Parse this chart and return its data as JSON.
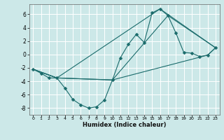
{
  "xlabel": "Humidex (Indice chaleur)",
  "background_color": "#cce8e8",
  "grid_color": "#ffffff",
  "line_color": "#1a6b6b",
  "xlim": [
    -0.5,
    23.5
  ],
  "ylim": [
    -9,
    7.5
  ],
  "xticks": [
    0,
    1,
    2,
    3,
    4,
    5,
    6,
    7,
    8,
    9,
    10,
    11,
    12,
    13,
    14,
    15,
    16,
    17,
    18,
    19,
    20,
    21,
    22,
    23
  ],
  "yticks": [
    -8,
    -6,
    -4,
    -2,
    0,
    2,
    4,
    6
  ],
  "series": [
    {
      "x": [
        0,
        1,
        2,
        3,
        4,
        5,
        6,
        7,
        8,
        9,
        10,
        11,
        12,
        13,
        14,
        15,
        16,
        17,
        18,
        19,
        20,
        21,
        22,
        23
      ],
      "y": [
        -2.2,
        -2.8,
        -3.5,
        -3.5,
        -5.0,
        -6.7,
        -7.5,
        -8.0,
        -7.8,
        -6.8,
        -3.8,
        -0.5,
        1.5,
        3.0,
        1.8,
        6.2,
        6.8,
        5.8,
        3.2,
        0.3,
        0.2,
        -0.3,
        -0.1,
        1.0
      ],
      "marker": "D",
      "markersize": 2.5
    },
    {
      "x": [
        0,
        3,
        10,
        17,
        23
      ],
      "y": [
        -2.2,
        -3.5,
        -3.8,
        5.8,
        1.0
      ]
    },
    {
      "x": [
        0,
        3,
        10,
        22,
        23
      ],
      "y": [
        -2.2,
        -3.5,
        -3.8,
        -0.1,
        1.0
      ]
    },
    {
      "x": [
        0,
        3,
        16,
        23
      ],
      "y": [
        -2.2,
        -3.5,
        6.8,
        1.0
      ]
    }
  ],
  "xlabel_fontsize": 6,
  "tick_fontsize_x": 4.5,
  "tick_fontsize_y": 5.5
}
